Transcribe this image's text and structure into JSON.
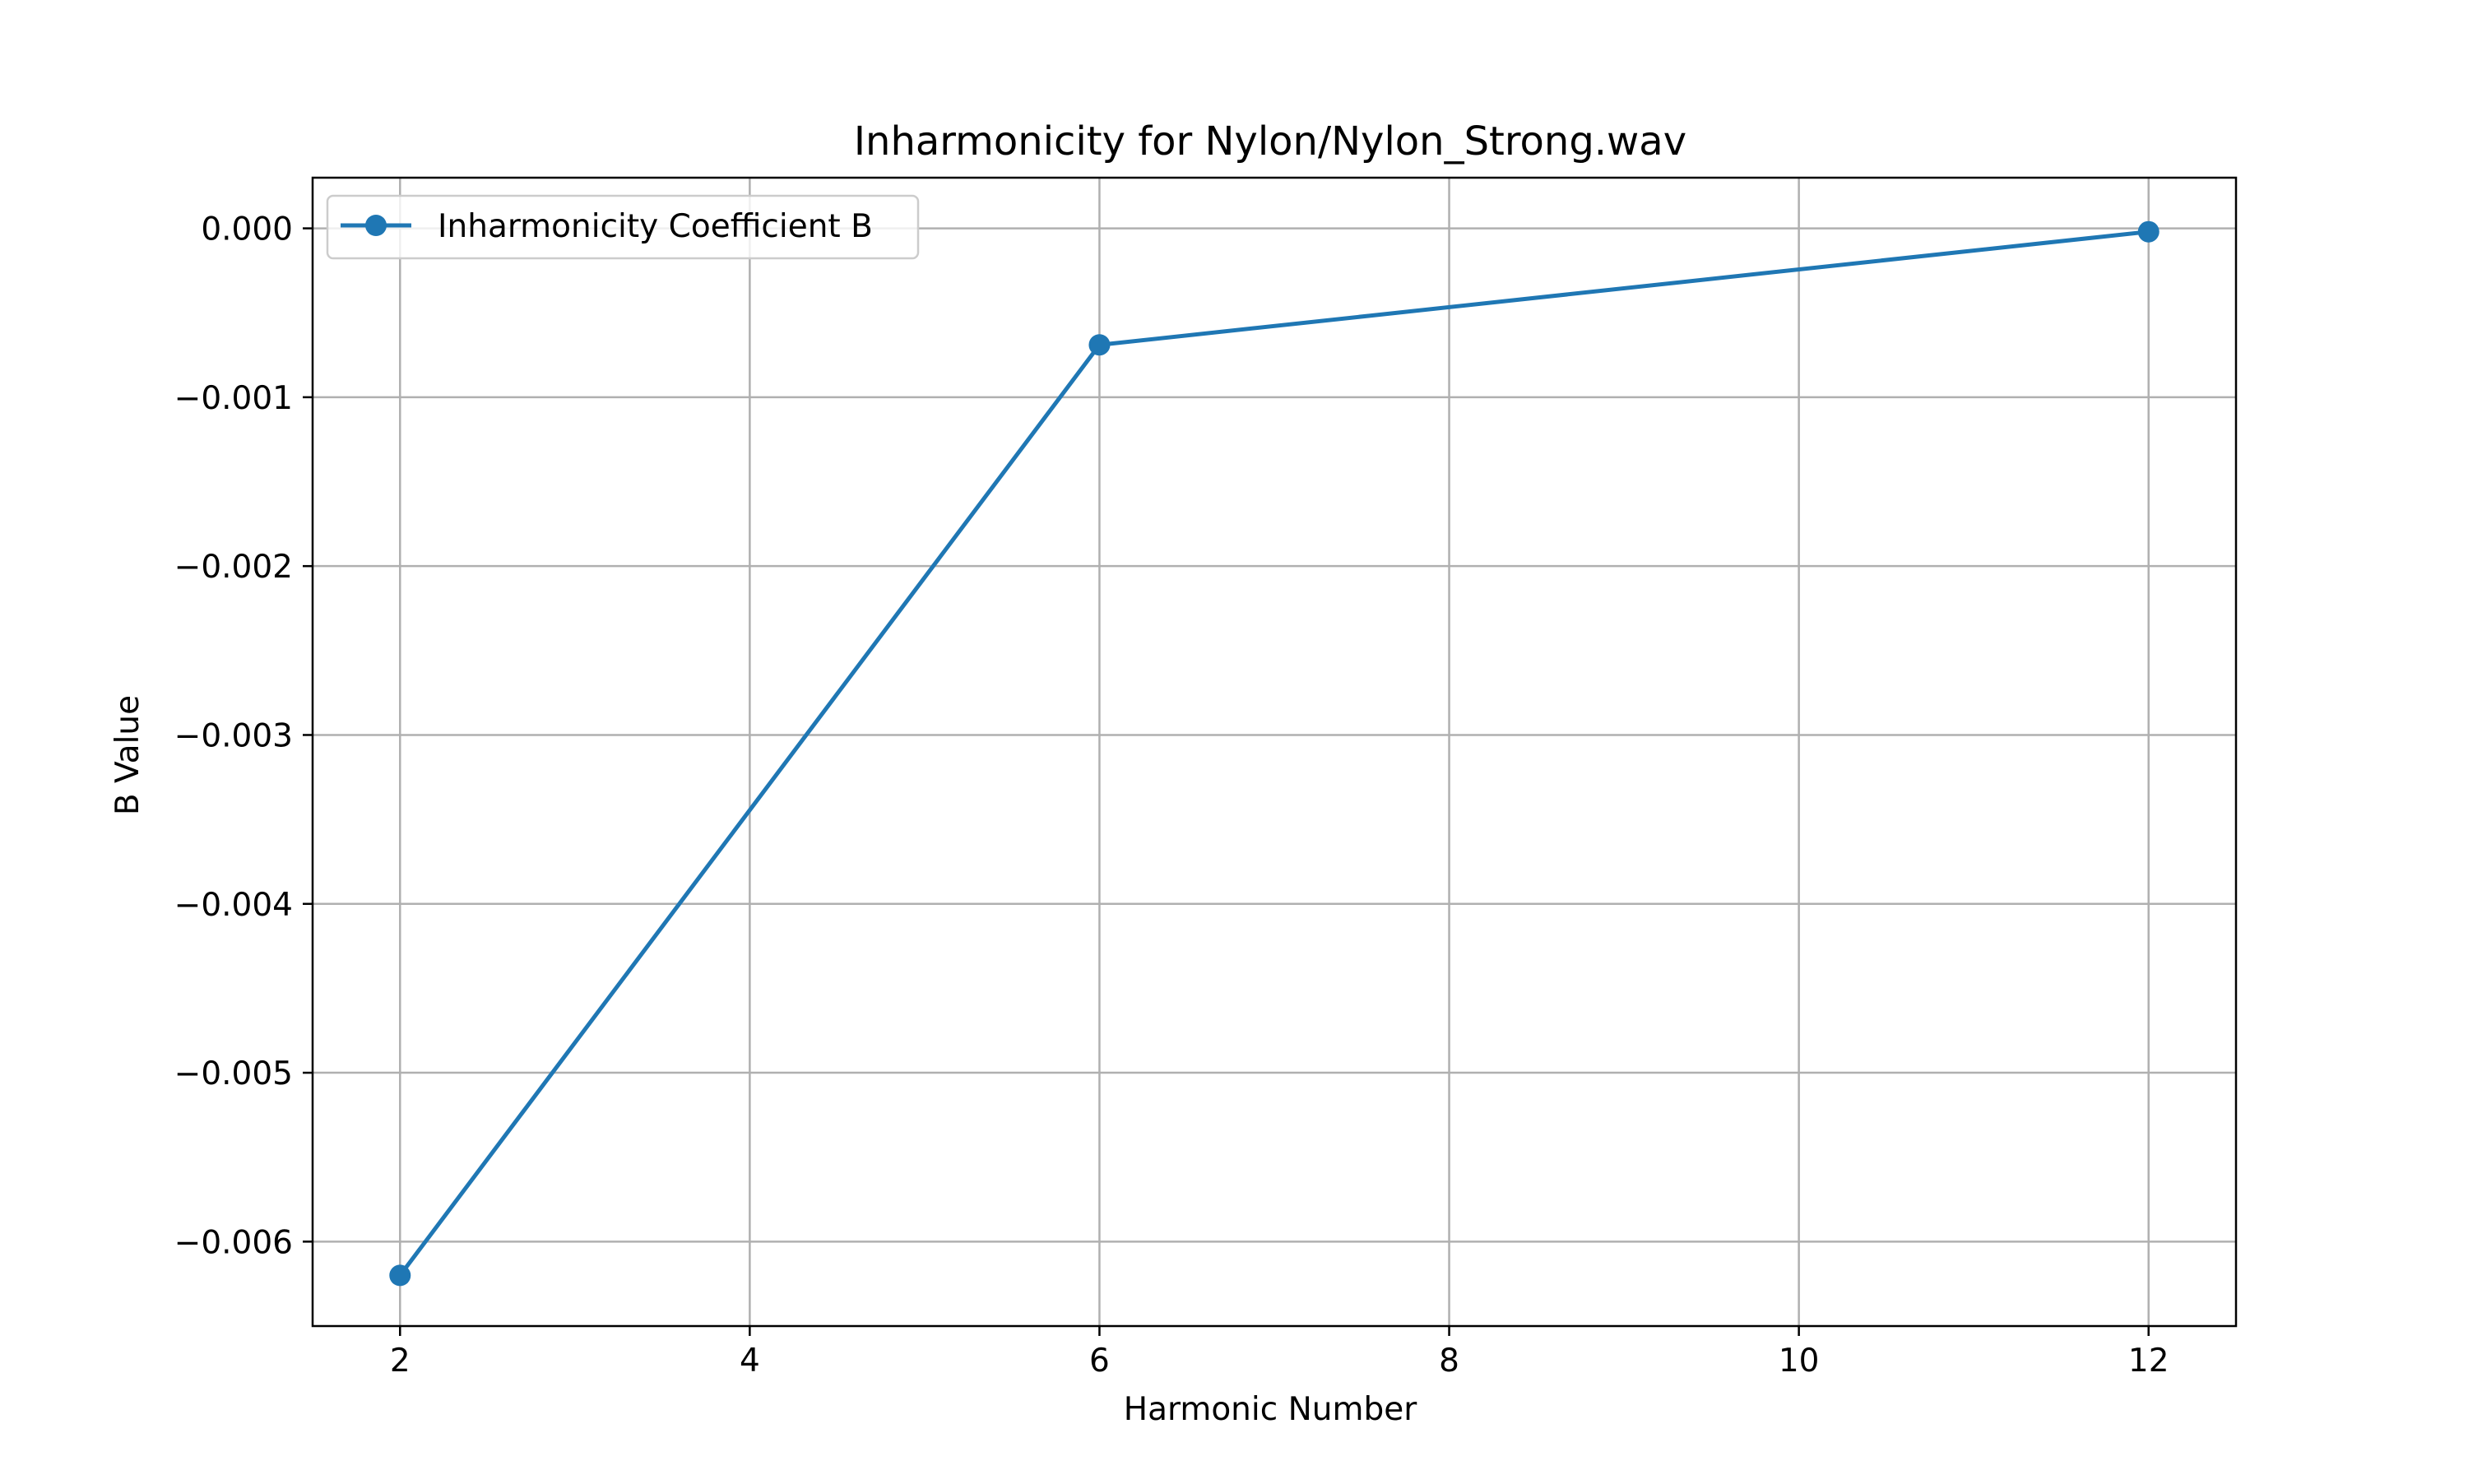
{
  "chart_data": {
    "type": "line",
    "title": "Inharmonicity for Nylon/Nylon_Strong.wav",
    "xlabel": "Harmonic Number",
    "ylabel": "B Value",
    "xlim": [
      1.5,
      12.5
    ],
    "ylim": [
      -0.0065,
      0.0003
    ],
    "xticks": [
      2,
      4,
      6,
      8,
      10,
      12
    ],
    "xtick_labels": [
      "2",
      "4",
      "6",
      "8",
      "10",
      "12"
    ],
    "yticks": [
      0.0,
      -0.001,
      -0.002,
      -0.003,
      -0.004,
      -0.005,
      -0.006
    ],
    "ytick_labels": [
      "0.000",
      "−0.001",
      "−0.002",
      "−0.003",
      "−0.004",
      "−0.005",
      "−0.006"
    ],
    "grid": true,
    "legend_position": "upper left",
    "series": [
      {
        "name": "Inharmonicity Coefficient B",
        "color": "#1f77b4",
        "marker": "circle",
        "x": [
          2,
          6,
          12
        ],
        "y": [
          -0.0062,
          -0.00069,
          -2e-05
        ]
      }
    ]
  }
}
